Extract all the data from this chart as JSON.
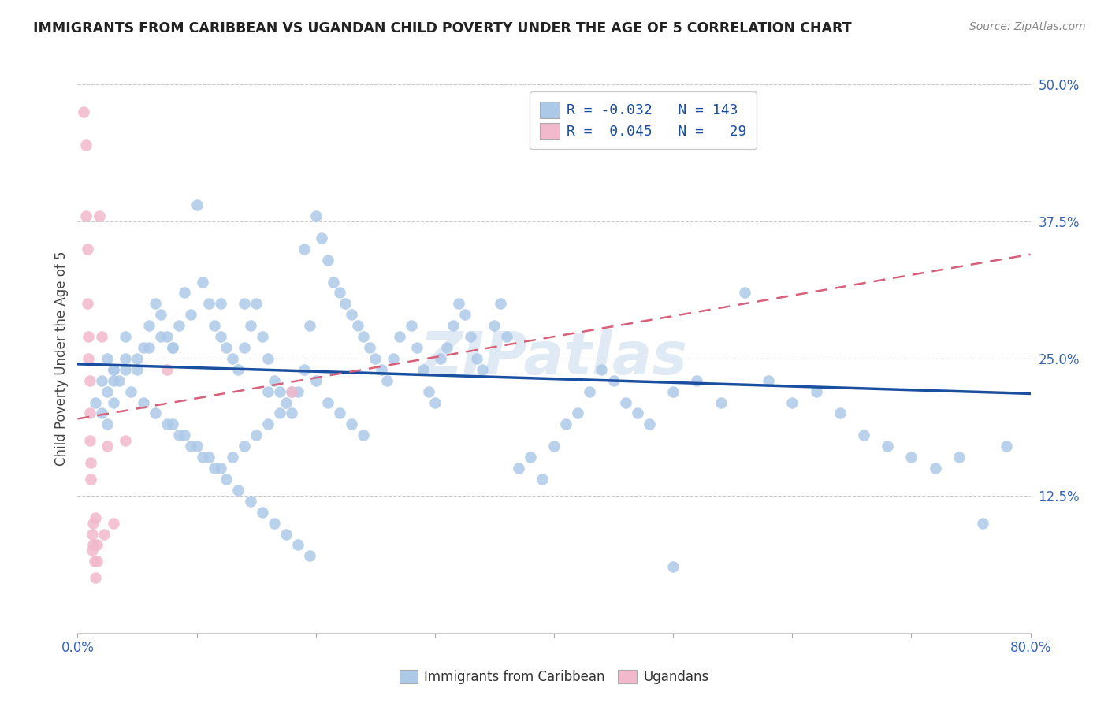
{
  "title": "IMMIGRANTS FROM CARIBBEAN VS UGANDAN CHILD POVERTY UNDER THE AGE OF 5 CORRELATION CHART",
  "source": "Source: ZipAtlas.com",
  "ylabel": "Child Poverty Under the Age of 5",
  "xlim": [
    0.0,
    0.8
  ],
  "ylim": [
    0.0,
    0.5
  ],
  "xtick_positions": [
    0.0,
    0.1,
    0.2,
    0.3,
    0.4,
    0.5,
    0.6,
    0.7,
    0.8
  ],
  "xticklabels": [
    "0.0%",
    "",
    "",
    "",
    "",
    "",
    "",
    "",
    "80.0%"
  ],
  "ytick_positions": [
    0.125,
    0.25,
    0.375,
    0.5
  ],
  "yticklabels": [
    "12.5%",
    "25.0%",
    "37.5%",
    "50.0%"
  ],
  "watermark": "ZIPatlas",
  "blue_color": "#adc9e8",
  "pink_color": "#f2b8cc",
  "blue_line_color": "#1a4fa0",
  "pink_line_color": "#d8607a",
  "legend_R1": "-0.032",
  "legend_N1": "143",
  "legend_R2": "0.045",
  "legend_N2": "29",
  "label1": "Immigrants from Caribbean",
  "label2": "Ugandans",
  "blue_trend_x": [
    0.0,
    0.8
  ],
  "blue_trend_y": [
    0.245,
    0.218
  ],
  "pink_trend_x": [
    0.0,
    0.8
  ],
  "pink_trend_y": [
    0.195,
    0.345
  ],
  "blue_x": [
    0.015,
    0.02,
    0.02,
    0.025,
    0.025,
    0.03,
    0.03,
    0.03,
    0.04,
    0.04,
    0.05,
    0.055,
    0.06,
    0.065,
    0.07,
    0.075,
    0.08,
    0.085,
    0.09,
    0.095,
    0.1,
    0.105,
    0.11,
    0.115,
    0.12,
    0.12,
    0.125,
    0.13,
    0.135,
    0.14,
    0.145,
    0.15,
    0.155,
    0.16,
    0.165,
    0.17,
    0.175,
    0.18,
    0.185,
    0.19,
    0.195,
    0.2,
    0.205,
    0.21,
    0.215,
    0.22,
    0.225,
    0.23,
    0.235,
    0.24,
    0.245,
    0.25,
    0.255,
    0.26,
    0.265,
    0.27,
    0.28,
    0.285,
    0.29,
    0.295,
    0.3,
    0.305,
    0.31,
    0.315,
    0.32,
    0.325,
    0.33,
    0.335,
    0.34,
    0.35,
    0.355,
    0.36,
    0.37,
    0.38,
    0.39,
    0.4,
    0.41,
    0.42,
    0.43,
    0.44,
    0.45,
    0.46,
    0.47,
    0.48,
    0.5,
    0.52,
    0.54,
    0.56,
    0.58,
    0.6,
    0.62,
    0.64,
    0.66,
    0.68,
    0.7,
    0.72,
    0.74,
    0.76,
    0.78,
    0.14,
    0.16,
    0.18,
    0.19,
    0.2,
    0.21,
    0.22,
    0.23,
    0.24,
    0.08,
    0.09,
    0.1,
    0.11,
    0.12,
    0.13,
    0.14,
    0.15,
    0.16,
    0.17,
    0.04,
    0.05,
    0.06,
    0.07,
    0.08,
    0.025,
    0.03,
    0.035,
    0.045,
    0.055,
    0.065,
    0.075,
    0.085,
    0.095,
    0.105,
    0.115,
    0.125,
    0.135,
    0.145,
    0.155,
    0.165,
    0.175,
    0.185,
    0.195,
    0.5
  ],
  "blue_y": [
    0.21,
    0.23,
    0.2,
    0.22,
    0.19,
    0.24,
    0.21,
    0.23,
    0.27,
    0.25,
    0.24,
    0.26,
    0.28,
    0.3,
    0.29,
    0.27,
    0.26,
    0.28,
    0.31,
    0.29,
    0.39,
    0.32,
    0.3,
    0.28,
    0.27,
    0.3,
    0.26,
    0.25,
    0.24,
    0.26,
    0.28,
    0.3,
    0.27,
    0.25,
    0.23,
    0.22,
    0.21,
    0.2,
    0.22,
    0.35,
    0.28,
    0.38,
    0.36,
    0.34,
    0.32,
    0.31,
    0.3,
    0.29,
    0.28,
    0.27,
    0.26,
    0.25,
    0.24,
    0.23,
    0.25,
    0.27,
    0.28,
    0.26,
    0.24,
    0.22,
    0.21,
    0.25,
    0.26,
    0.28,
    0.3,
    0.29,
    0.27,
    0.25,
    0.24,
    0.28,
    0.3,
    0.27,
    0.15,
    0.16,
    0.14,
    0.17,
    0.19,
    0.2,
    0.22,
    0.24,
    0.23,
    0.21,
    0.2,
    0.19,
    0.22,
    0.23,
    0.21,
    0.31,
    0.23,
    0.21,
    0.22,
    0.2,
    0.18,
    0.17,
    0.16,
    0.15,
    0.16,
    0.1,
    0.17,
    0.3,
    0.22,
    0.22,
    0.24,
    0.23,
    0.21,
    0.2,
    0.19,
    0.18,
    0.19,
    0.18,
    0.17,
    0.16,
    0.15,
    0.16,
    0.17,
    0.18,
    0.19,
    0.2,
    0.24,
    0.25,
    0.26,
    0.27,
    0.26,
    0.25,
    0.24,
    0.23,
    0.22,
    0.21,
    0.2,
    0.19,
    0.18,
    0.17,
    0.16,
    0.15,
    0.14,
    0.13,
    0.12,
    0.11,
    0.1,
    0.09,
    0.08,
    0.07,
    0.06
  ],
  "pink_x": [
    0.005,
    0.007,
    0.007,
    0.008,
    0.008,
    0.009,
    0.009,
    0.01,
    0.01,
    0.01,
    0.011,
    0.011,
    0.012,
    0.012,
    0.013,
    0.013,
    0.014,
    0.015,
    0.015,
    0.016,
    0.016,
    0.018,
    0.02,
    0.022,
    0.025,
    0.03,
    0.04,
    0.075,
    0.18
  ],
  "pink_y": [
    0.475,
    0.445,
    0.38,
    0.35,
    0.3,
    0.27,
    0.25,
    0.23,
    0.2,
    0.175,
    0.155,
    0.14,
    0.09,
    0.075,
    0.1,
    0.08,
    0.065,
    0.105,
    0.05,
    0.08,
    0.065,
    0.38,
    0.27,
    0.09,
    0.17,
    0.1,
    0.175,
    0.24,
    0.22
  ]
}
